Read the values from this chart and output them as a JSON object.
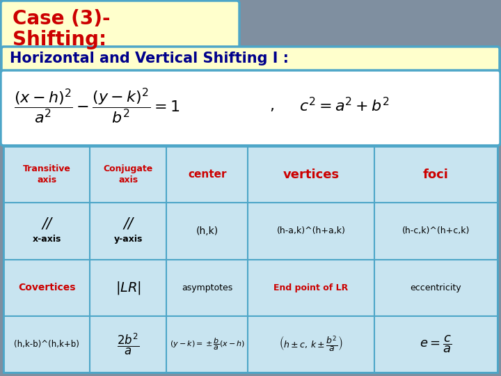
{
  "title_line1": "Case (3)-",
  "title_line2": "Shifting:",
  "subtitle": "Horizontal and Vertical Shifting I :",
  "bg_color": "#7f8fa0",
  "title_bg": "#ffffcc",
  "subtitle_bg": "#ffffcc",
  "formula_bg": "#ffffff",
  "table_bg": "#c8e4f0",
  "title_color": "#cc0000",
  "subtitle_color": "#00008b",
  "header_color": "#cc0000",
  "table_border_color": "#4da6c8",
  "formula_border_color": "#4da6c8"
}
